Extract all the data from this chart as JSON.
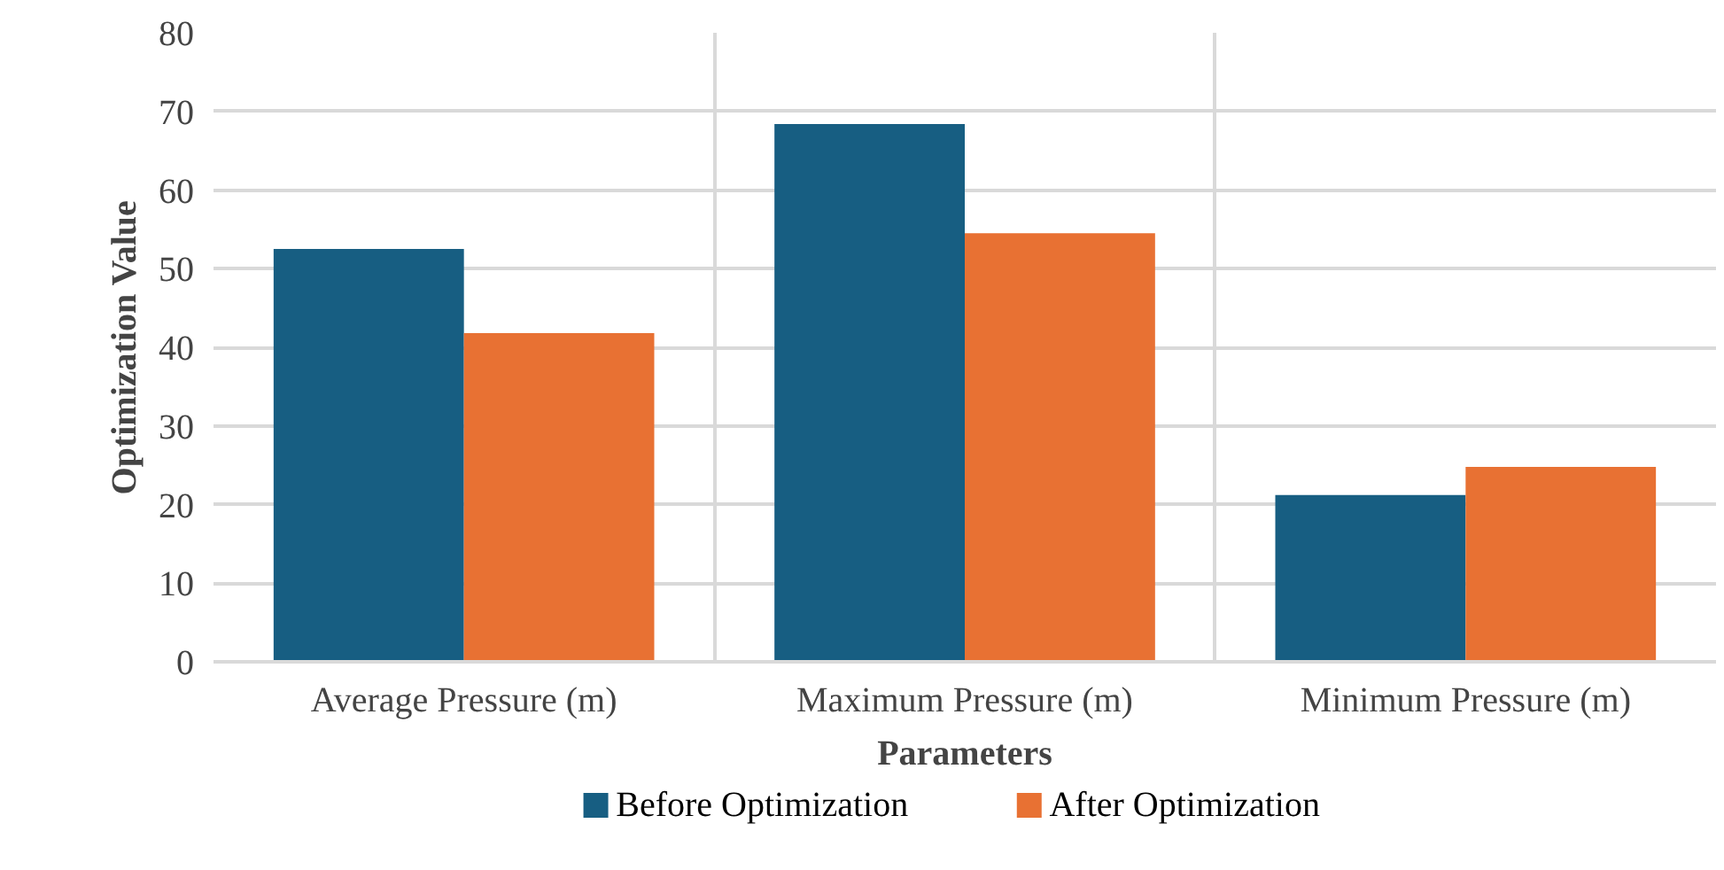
{
  "chart_data": {
    "type": "bar",
    "xlabel": "Parameters",
    "ylabel": "Optimization Value",
    "categories": [
      "Average Pressure (m)",
      "Maximum Pressure (m)",
      "Minimum Pressure (m)"
    ],
    "series": [
      {
        "name": "Before Optimization",
        "color": "#175e82",
        "values": [
          52.5,
          68.4,
          21.2
        ]
      },
      {
        "name": "After Optimization",
        "color": "#e87133",
        "values": [
          41.8,
          54.5,
          24.8
        ]
      }
    ],
    "ylim": [
      0,
      80
    ],
    "yticks": [
      0,
      10,
      20,
      30,
      40,
      50,
      60,
      70,
      80
    ],
    "grid": true,
    "legend": "bottom"
  }
}
